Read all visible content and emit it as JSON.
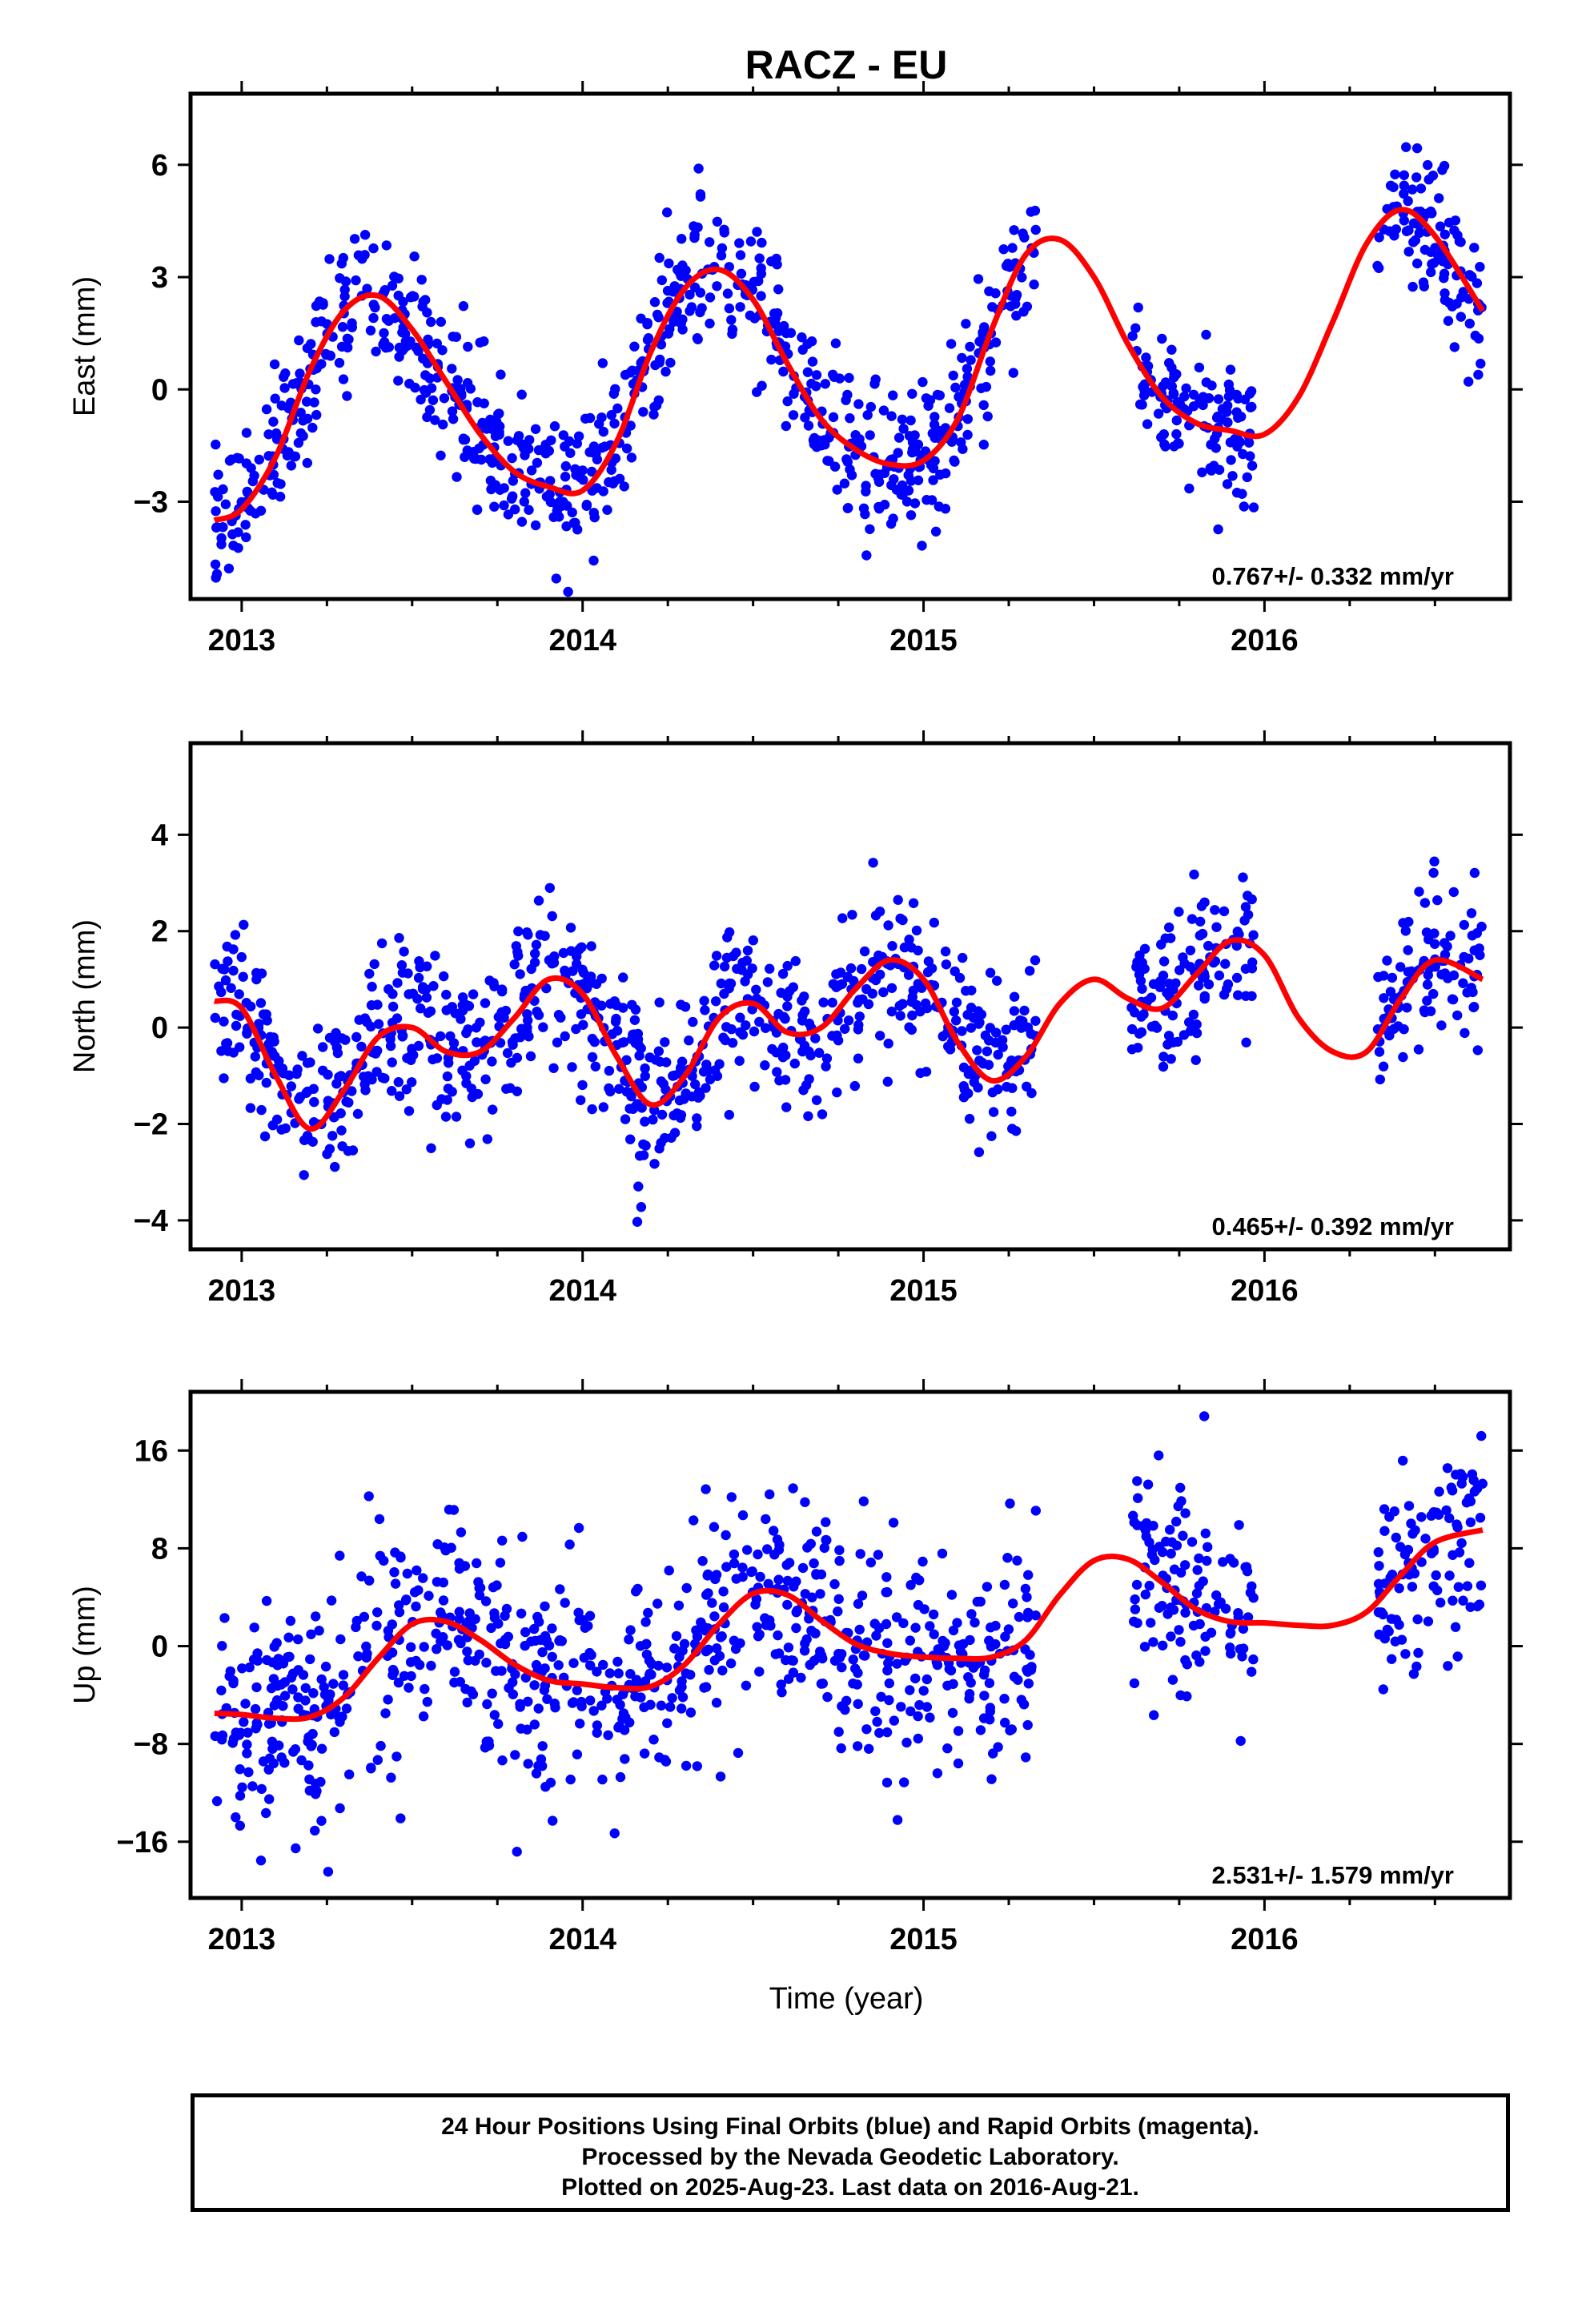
{
  "chart_data": {
    "title": "RACZ - EU",
    "xlabel": "Time (year)",
    "x_ticks": [
      "2013",
      "2014",
      "2015",
      "2016"
    ],
    "xlim": [
      2012.85,
      2016.72
    ],
    "colors": {
      "data_points": "#0000ff",
      "model_fit": "#ff0000",
      "frame": "#000000"
    },
    "panels": [
      {
        "type": "scatter",
        "ylabel": "East (mm)",
        "ylim": [
          -5.6,
          7.9
        ],
        "y_ticks": [
          6,
          3,
          0,
          -3
        ],
        "y_tick_labels": [
          "6",
          "3",
          "0",
          "−3"
        ],
        "rate": "0.767+/- 0.332 mm/yr",
        "data_segments": [
          [
            2012.92,
            2013.71
          ],
          [
            2013.71,
            2014.12
          ],
          [
            2014.12,
            2015.33
          ],
          [
            2015.61,
            2015.97
          ],
          [
            2016.33,
            2016.64
          ]
        ],
        "noise_sd": 0.95,
        "fit_curve": {
          "x": [
            2012.92,
            2013.0,
            2013.1,
            2013.2,
            2013.3,
            2013.4,
            2013.5,
            2013.6,
            2013.7,
            2013.8,
            2013.9,
            2014.0,
            2014.1,
            2014.2,
            2014.3,
            2014.4,
            2014.5,
            2014.6,
            2014.7,
            2014.8,
            2014.9,
            2015.0,
            2015.1,
            2015.2,
            2015.3,
            2015.4,
            2015.5,
            2015.6,
            2015.7,
            2015.8,
            2015.9,
            2016.0,
            2016.1,
            2016.2,
            2016.3,
            2016.4,
            2016.5,
            2016.64
          ],
          "y": [
            -3.5,
            -3.2,
            -1.8,
            0.5,
            2.1,
            2.5,
            1.6,
            0.2,
            -1.2,
            -2.2,
            -2.6,
            -2.7,
            -1.4,
            1.0,
            2.7,
            3.2,
            2.4,
            0.7,
            -0.8,
            -1.6,
            -2.0,
            -1.9,
            -0.8,
            1.6,
            3.6,
            4.0,
            3.0,
            1.2,
            -0.2,
            -0.9,
            -1.1,
            -1.2,
            -0.2,
            1.8,
            3.9,
            4.8,
            4.1,
            2.1
          ]
        }
      },
      {
        "type": "scatter",
        "ylabel": "North (mm)",
        "ylim": [
          -4.6,
          5.9
        ],
        "y_ticks": [
          4,
          2,
          0,
          -2,
          -4
        ],
        "y_tick_labels": [
          "4",
          "2",
          "0",
          "−2",
          "−4"
        ],
        "rate": "0.465+/- 0.392 mm/yr",
        "data_segments": [
          [
            2012.92,
            2013.71
          ],
          [
            2013.71,
            2014.12
          ],
          [
            2014.12,
            2015.33
          ],
          [
            2015.61,
            2015.97
          ],
          [
            2016.33,
            2016.64
          ]
        ],
        "noise_sd": 0.85,
        "fit_curve": {
          "x": [
            2012.92,
            2013.0,
            2013.1,
            2013.2,
            2013.3,
            2013.4,
            2013.5,
            2013.6,
            2013.7,
            2013.8,
            2013.9,
            2014.0,
            2014.1,
            2014.2,
            2014.3,
            2014.4,
            2014.5,
            2014.6,
            2014.7,
            2014.8,
            2014.9,
            2015.0,
            2015.1,
            2015.2,
            2015.3,
            2015.4,
            2015.5,
            2015.6,
            2015.7,
            2015.8,
            2015.9,
            2016.0,
            2016.1,
            2016.2,
            2016.3,
            2016.4,
            2016.5,
            2016.64
          ],
          "y": [
            0.55,
            0.4,
            -1.0,
            -2.1,
            -1.3,
            -0.2,
            0.0,
            -0.5,
            -0.5,
            0.2,
            1.0,
            0.7,
            -0.6,
            -1.6,
            -1.0,
            0.2,
            0.5,
            -0.1,
            0.0,
            0.8,
            1.4,
            1.0,
            -0.3,
            -1.1,
            -0.6,
            0.5,
            1.0,
            0.6,
            0.4,
            1.1,
            1.8,
            1.5,
            0.2,
            -0.5,
            -0.5,
            0.6,
            1.4,
            1.0
          ]
        }
      },
      {
        "type": "scatter",
        "ylabel": "Up (mm)",
        "ylim": [
          -20.6,
          20.8
        ],
        "y_ticks": [
          16,
          8,
          0,
          -8,
          -16
        ],
        "y_tick_labels": [
          "16",
          "8",
          "0",
          "−8",
          "−16"
        ],
        "rate": "2.531+/- 1.579 mm/yr",
        "data_segments": [
          [
            2012.92,
            2013.71
          ],
          [
            2013.71,
            2014.12
          ],
          [
            2014.12,
            2015.33
          ],
          [
            2015.61,
            2015.97
          ],
          [
            2016.33,
            2016.64
          ]
        ],
        "noise_sd": 4.5,
        "fit_curve": {
          "x": [
            2012.92,
            2013.0,
            2013.1,
            2013.2,
            2013.3,
            2013.4,
            2013.5,
            2013.6,
            2013.7,
            2013.8,
            2013.9,
            2014.0,
            2014.1,
            2014.2,
            2014.3,
            2014.4,
            2014.5,
            2014.6,
            2014.7,
            2014.8,
            2014.9,
            2015.0,
            2015.1,
            2015.2,
            2015.3,
            2015.4,
            2015.5,
            2015.6,
            2015.7,
            2015.8,
            2015.9,
            2016.0,
            2016.1,
            2016.2,
            2016.3,
            2016.4,
            2016.5,
            2016.64
          ],
          "y": [
            -5.5,
            -5.6,
            -5.9,
            -5.8,
            -4.2,
            -1.0,
            1.8,
            2.0,
            0.5,
            -1.5,
            -2.8,
            -3.1,
            -3.4,
            -3.3,
            -1.5,
            1.8,
            4.3,
            4.2,
            2.1,
            0.2,
            -0.6,
            -0.9,
            -1.0,
            -0.9,
            0.5,
            4.2,
            7.0,
            7.1,
            5.2,
            3.0,
            2.0,
            1.9,
            1.7,
            1.7,
            2.8,
            5.8,
            8.5,
            9.5
          ]
        }
      }
    ],
    "caption": [
      "24 Hour Positions Using Final Orbits (blue) and Rapid Orbits (magenta).",
      "Processed by the Nevada Geodetic Laboratory.",
      "Plotted on 2025-Aug-23. Last data on 2016-Aug-21."
    ]
  }
}
